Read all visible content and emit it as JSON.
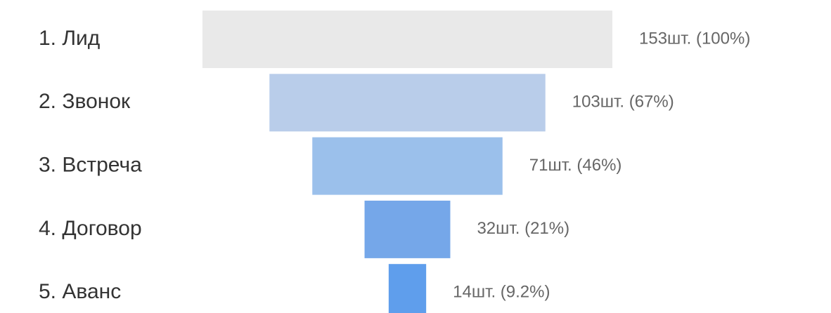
{
  "chart_data": {
    "type": "funnel",
    "categories": [
      "1. Лид",
      "2. Звонок",
      "3. Встреча",
      "4. Договор",
      "5. Аванс"
    ],
    "values": [
      153,
      103,
      71,
      32,
      14
    ],
    "value_labels": [
      "153шт. (100%)",
      "103шт. (67%)",
      "71шт. (46%)",
      "32шт. (21%)",
      "14шт. (9.2%)"
    ],
    "colors": [
      "#e9e9e9",
      "#b9cdea",
      "#9bc0eb",
      "#75a7e9",
      "#5f9eec"
    ]
  }
}
